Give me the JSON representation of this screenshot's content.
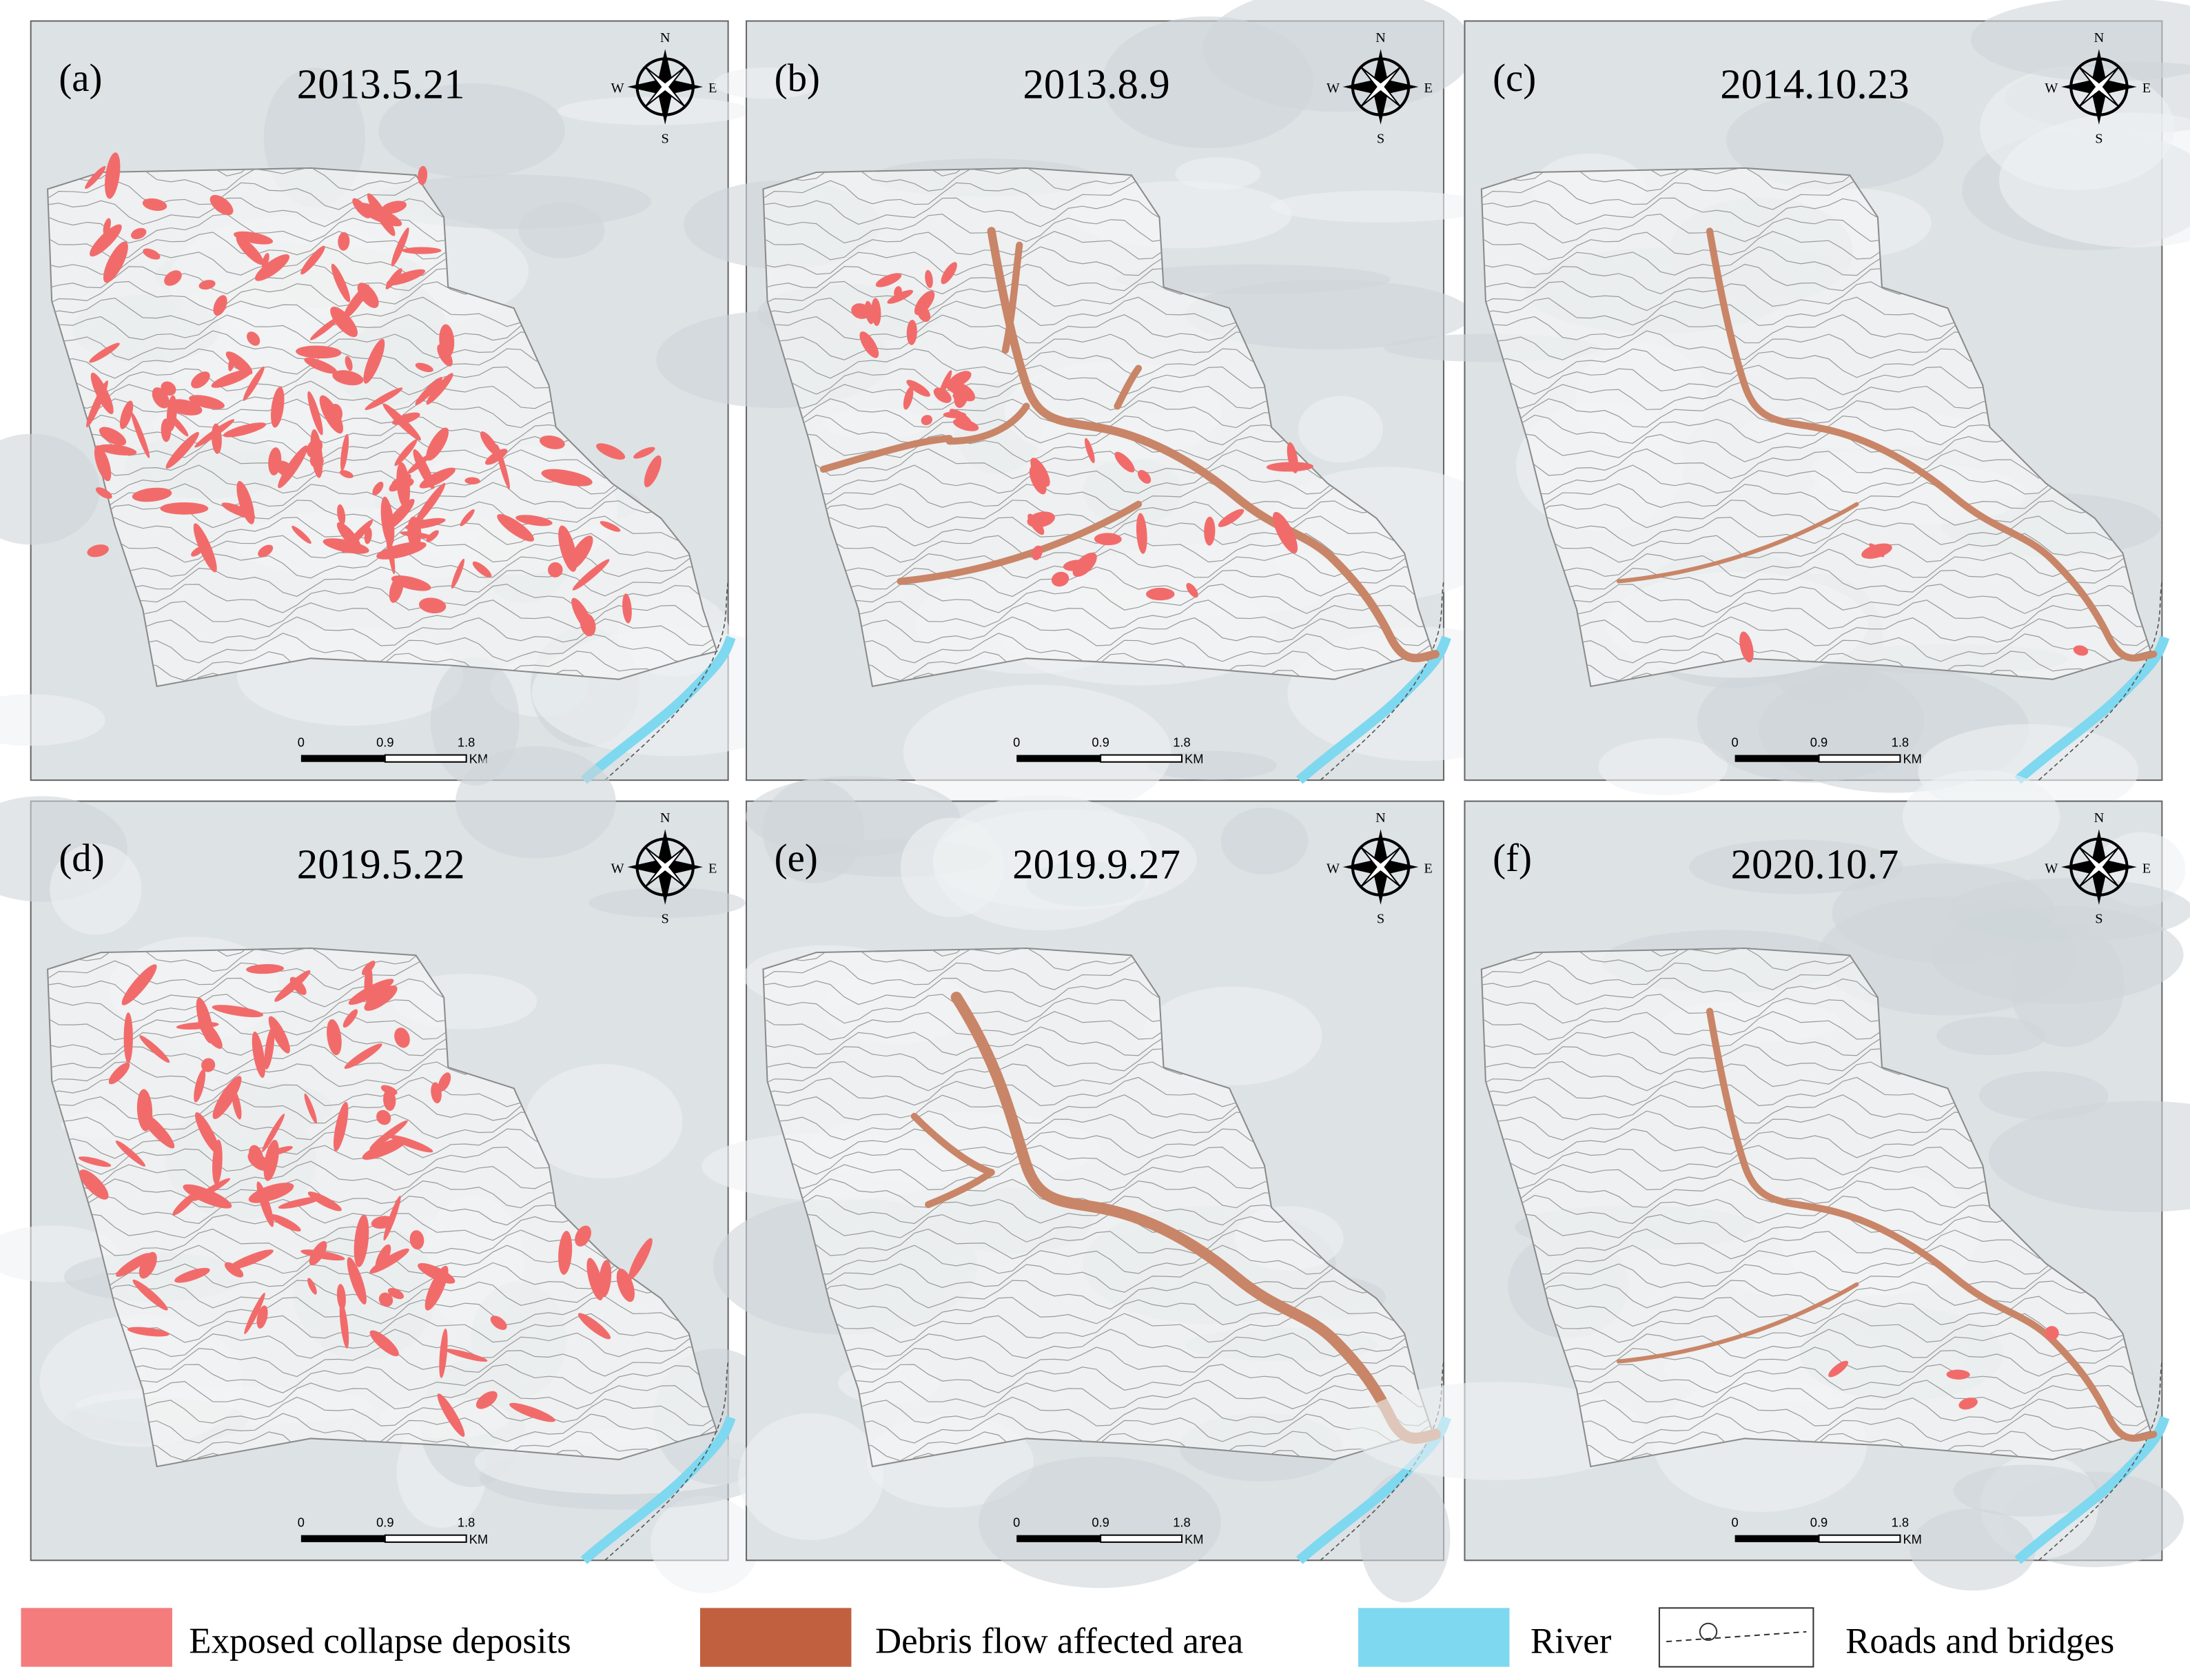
{
  "panels": [
    {
      "label": "(a)",
      "date": "2013.5.21"
    },
    {
      "label": "(b)",
      "date": "2013.8.9"
    },
    {
      "label": "(c)",
      "date": "2014.10.23"
    },
    {
      "label": "(d)",
      "date": "2019.5.22"
    },
    {
      "label": "(e)",
      "date": "2019.9.27"
    },
    {
      "label": "(f)",
      "date": "2020.10.7"
    }
  ],
  "compass": {
    "n": "N",
    "s": "S",
    "w": "W",
    "e": "E"
  },
  "scale_bar": {
    "ticks": [
      "0",
      "0.9",
      "1.8"
    ],
    "unit": "KM"
  },
  "legend": [
    {
      "label": "Exposed collapse deposits",
      "color": "#f47c7c"
    },
    {
      "label": "Debris flow affected area",
      "color": "#c0603f"
    },
    {
      "label": "River",
      "color": "#7ed8f0"
    },
    {
      "label": "Roads and bridges"
    }
  ]
}
